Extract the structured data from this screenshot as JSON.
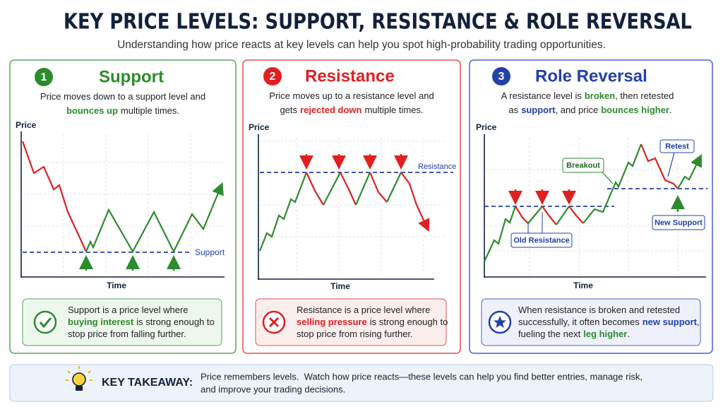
{
  "header": {
    "title": "KEY PRICE LEVELS: SUPPORT, RESISTANCE & ROLE REVERSAL",
    "subtitle": "Understanding how price reacts at key levels can help you spot high-probability trading opportunities."
  },
  "panels": [
    {
      "number": "1",
      "heading": "Support",
      "description": [
        [
          "Price moves down to a support level and"
        ],
        [
          "bounces up",
          "multiple times."
        ]
      ],
      "chart": {
        "y_label": "Price",
        "x_label": "Time",
        "level_label": "Support"
      },
      "callout": [
        [
          "Support is a price level where"
        ],
        [
          "buying interest",
          "is strong enough to"
        ],
        [
          "stop price from falling further."
        ]
      ]
    },
    {
      "number": "2",
      "heading": "Resistance",
      "description": [
        [
          "Price moves up to a resistance level and"
        ],
        [
          "gets",
          "rejected down",
          "multiple times."
        ]
      ],
      "chart": {
        "y_label": "Price",
        "x_label": "Time",
        "level_label": "Resistance"
      },
      "callout": [
        [
          "Resistance is a price level where"
        ],
        [
          "selling pressure",
          "is strong enough to"
        ],
        [
          "stop price from rising further."
        ]
      ]
    },
    {
      "number": "3",
      "heading": "Role Reversal",
      "description": [
        [
          "A resistance level is",
          "broken",
          ", then retested"
        ],
        [
          "as",
          "support",
          ", and price",
          "bounces higher",
          "."
        ]
      ],
      "chart": {
        "y_label": "Price",
        "x_label": "Time",
        "breakout": "Breakout",
        "retest": "Retest",
        "old_level": "Old Resistance",
        "new_level": "New Support"
      },
      "callout": [
        [
          "When resistance is broken and retested"
        ],
        [
          "successfully, it often becomes",
          "new support",
          ","
        ],
        [
          "fueling the next",
          "leg higher",
          "."
        ]
      ]
    }
  ],
  "takeaway": {
    "label": "KEY TAKEAWAY:",
    "lines": [
      "Price remembers levels.  Watch how price reacts—these levels can help you find better entries, manage risk,",
      "and improve your trading decisions."
    ]
  }
}
